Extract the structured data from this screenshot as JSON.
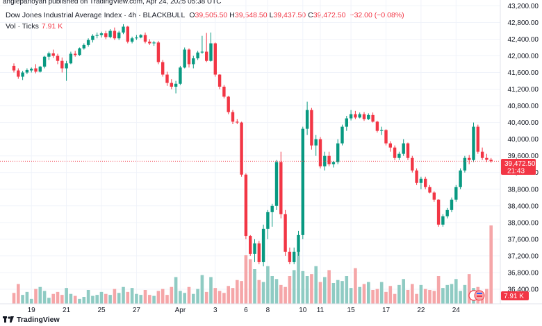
{
  "publisher_line": "anglepanoyan published on TradingView.com, Apr 24, 2025 05:38 UTC",
  "legend": {
    "title": "Dow Jones Industrial Average Index · 4h · BLACKBULL",
    "open_label": "O",
    "open": "39,505.50",
    "high_label": "H",
    "high": "39,548.50",
    "low_label": "L",
    "low": "39,437.50",
    "close_label": "C",
    "close": "39,472.50",
    "change": "−32.00 (−0.08%)",
    "volume_label": "Vol · Ticks",
    "volume_value": "7.91 K"
  },
  "price_badge": {
    "price": "39,472.50",
    "countdown": "21:43"
  },
  "volume_badge": "7.91 K",
  "footer_brand": "TradingView",
  "colors": {
    "up": "#089981",
    "down": "#f23645",
    "vol_up": "#8fcbc3",
    "vol_down": "#f5a6a8",
    "badge": "#f23645",
    "grid": "#f0f3fa",
    "text": "#131722"
  },
  "chart_data": {
    "type": "candlestick",
    "symbol": "Dow Jones Industrial Average Index",
    "interval": "4h",
    "exchange": "BLACKBULL",
    "y_ticks": [
      36400,
      36800,
      37200,
      37600,
      38000,
      38400,
      38800,
      39200,
      39600,
      40000,
      40400,
      40800,
      41200,
      41600,
      42000,
      42400,
      42800,
      43200
    ],
    "y_tick_labels": [
      "36,400.00",
      "36,800.00",
      "37,200.00",
      "37,600.00",
      "38,000.00",
      "38,400.00",
      "38,800.00",
      "39,200.00",
      "39,600.00",
      "40,000.00",
      "40,400.00",
      "40,800.00",
      "41,200.00",
      "41,600.00",
      "42,000.00",
      "42,400.00",
      "42,800.00",
      "43,200.00"
    ],
    "ylim": [
      36050,
      43340
    ],
    "x_labels": [
      {
        "label": "19",
        "bar": 4
      },
      {
        "label": "21",
        "bar": 12
      },
      {
        "label": "25",
        "bar": 20
      },
      {
        "label": "27",
        "bar": 28
      },
      {
        "label": "Apr",
        "bar": 38
      },
      {
        "label": "3",
        "bar": 46
      },
      {
        "label": "6",
        "bar": 53
      },
      {
        "label": "8",
        "bar": 58
      },
      {
        "label": "10",
        "bar": 66
      },
      {
        "label": "11",
        "bar": 70
      },
      {
        "label": "15",
        "bar": 77
      },
      {
        "label": "17",
        "bar": 85
      },
      {
        "label": "22",
        "bar": 93
      },
      {
        "label": "24",
        "bar": 101
      }
    ],
    "last_price": 39472.5,
    "ohlcv": [
      [
        41760,
        41820,
        41600,
        41650,
        1100
      ],
      [
        41650,
        41700,
        41450,
        41500,
        2000
      ],
      [
        41500,
        41640,
        41420,
        41600,
        900
      ],
      [
        41600,
        41700,
        41560,
        41660,
        1200
      ],
      [
        41650,
        41720,
        41600,
        41690,
        500
      ],
      [
        41700,
        41800,
        41580,
        41620,
        1500
      ],
      [
        41620,
        41760,
        41600,
        41740,
        1700
      ],
      [
        41740,
        42000,
        41700,
        41980,
        1300
      ],
      [
        41980,
        42100,
        41900,
        42060,
        600
      ],
      [
        42060,
        42150,
        41950,
        42000,
        1000
      ],
      [
        42000,
        42050,
        41800,
        41880,
        1200
      ],
      [
        41880,
        41960,
        41600,
        41700,
        900
      ],
      [
        41700,
        41880,
        41400,
        41820,
        1600
      ],
      [
        41820,
        42100,
        41800,
        42050,
        1000
      ],
      [
        42050,
        42120,
        41980,
        42020,
        800
      ],
      [
        42020,
        42200,
        42000,
        42180,
        500
      ],
      [
        42180,
        42300,
        42150,
        42260,
        700
      ],
      [
        42260,
        42420,
        42220,
        42380,
        1400
      ],
      [
        42380,
        42520,
        42320,
        42480,
        800
      ],
      [
        42480,
        42560,
        42420,
        42500,
        900
      ],
      [
        42500,
        42580,
        42440,
        42540,
        1200
      ],
      [
        42540,
        42600,
        42400,
        42450,
        1000
      ],
      [
        42450,
        42640,
        42420,
        42600,
        900
      ],
      [
        42600,
        42680,
        42380,
        42420,
        1500
      ],
      [
        42420,
        42600,
        42380,
        42560,
        1100
      ],
      [
        42560,
        42760,
        42520,
        42700,
        1700
      ],
      [
        42700,
        42720,
        42300,
        42340,
        1200
      ],
      [
        42340,
        42460,
        42300,
        42420,
        1600
      ],
      [
        42420,
        42500,
        42380,
        42440,
        1000
      ],
      [
        42440,
        42520,
        42420,
        42500,
        900
      ],
      [
        42500,
        42560,
        42300,
        42340,
        1400
      ],
      [
        42340,
        42400,
        42260,
        42300,
        900
      ],
      [
        42300,
        42360,
        42240,
        42320,
        800
      ],
      [
        42320,
        42360,
        41800,
        41850,
        1300
      ],
      [
        41850,
        41900,
        41500,
        41550,
        1500
      ],
      [
        41550,
        41620,
        41280,
        41350,
        900
      ],
      [
        41350,
        41440,
        41200,
        41260,
        1700
      ],
      [
        41260,
        41400,
        41100,
        41330,
        2700
      ],
      [
        41330,
        41760,
        41300,
        41720,
        1300
      ],
      [
        41720,
        42200,
        41700,
        42150,
        1100
      ],
      [
        42150,
        42180,
        41720,
        41800,
        1700
      ],
      [
        41800,
        42000,
        41700,
        41940,
        1000
      ],
      [
        41940,
        42120,
        41900,
        42080,
        1500
      ],
      [
        42080,
        42480,
        42050,
        42100,
        2900
      ],
      [
        42100,
        42550,
        41850,
        41880,
        1200
      ],
      [
        41880,
        42560,
        41860,
        42300,
        2700
      ],
      [
        42300,
        42320,
        41500,
        41550,
        1600
      ],
      [
        41550,
        41560,
        41200,
        41260,
        1300
      ],
      [
        41260,
        41300,
        40980,
        41020,
        1100
      ],
      [
        41020,
        41040,
        40600,
        40650,
        1800
      ],
      [
        40650,
        40700,
        40360,
        40420,
        1600
      ],
      [
        40420,
        40480,
        40360,
        40400,
        2400
      ],
      [
        40400,
        40420,
        39100,
        39150,
        2300
      ],
      [
        39150,
        39180,
        37600,
        37680,
        4900
      ],
      [
        37680,
        37700,
        37200,
        37250,
        4500
      ],
      [
        37250,
        37600,
        37050,
        37500,
        3500
      ],
      [
        37500,
        37560,
        37000,
        37050,
        2400
      ],
      [
        37050,
        37950,
        36950,
        37850,
        2200
      ],
      [
        37850,
        38300,
        37600,
        38250,
        3800
      ],
      [
        38250,
        38450,
        37900,
        38400,
        2800
      ],
      [
        38400,
        39500,
        38300,
        39450,
        2500
      ],
      [
        39450,
        39700,
        38100,
        38200,
        1900
      ],
      [
        38200,
        38300,
        37200,
        37300,
        1700
      ],
      [
        37300,
        37400,
        37000,
        37050,
        2800
      ],
      [
        37050,
        37400,
        37000,
        37300,
        3400
      ],
      [
        37300,
        37800,
        37200,
        37700,
        5400
      ],
      [
        37700,
        40300,
        37600,
        40250,
        3300
      ],
      [
        40250,
        40900,
        40100,
        40700,
        2800
      ],
      [
        40700,
        40750,
        39750,
        39850,
        3000
      ],
      [
        39850,
        40100,
        39600,
        40000,
        3800
      ],
      [
        40000,
        40050,
        39300,
        39350,
        2200
      ],
      [
        39350,
        39700,
        39250,
        39600,
        2700
      ],
      [
        39600,
        39700,
        39350,
        39400,
        3400
      ],
      [
        39400,
        39480,
        39320,
        39450,
        2100
      ],
      [
        39450,
        40000,
        39400,
        39900,
        2400
      ],
      [
        39900,
        40350,
        39850,
        40300,
        2300
      ],
      [
        40300,
        40560,
        40200,
        40500,
        2800
      ],
      [
        40500,
        40700,
        40450,
        40600,
        1600
      ],
      [
        40600,
        40680,
        40480,
        40520,
        3600
      ],
      [
        40520,
        40640,
        40500,
        40600,
        1700
      ],
      [
        40600,
        40650,
        40440,
        40480,
        2000
      ],
      [
        40480,
        40620,
        40460,
        40580,
        2200
      ],
      [
        40580,
        40640,
        40400,
        40420,
        1400
      ],
      [
        40420,
        40440,
        40160,
        40200,
        1500
      ],
      [
        40200,
        40300,
        40100,
        40220,
        2200
      ],
      [
        40220,
        40240,
        39850,
        39900,
        1200
      ],
      [
        39900,
        39950,
        39700,
        39800,
        1800
      ],
      [
        39800,
        39850,
        39500,
        39550,
        1000
      ],
      [
        39550,
        39700,
        39500,
        39650,
        1900
      ],
      [
        39650,
        40000,
        39600,
        39900,
        2500
      ],
      [
        39900,
        39920,
        39500,
        39550,
        1400
      ],
      [
        39550,
        39600,
        39200,
        39250,
        2000
      ],
      [
        39250,
        39300,
        38900,
        38950,
        1000
      ],
      [
        38950,
        39100,
        38800,
        39050,
        1900
      ],
      [
        39050,
        39100,
        38800,
        38850,
        1500
      ],
      [
        38850,
        38900,
        38700,
        38720,
        1400
      ],
      [
        38720,
        38750,
        38500,
        38550,
        1300
      ],
      [
        38550,
        38560,
        37900,
        37950,
        2800
      ],
      [
        37950,
        38200,
        37900,
        38150,
        1600
      ],
      [
        38150,
        38350,
        38100,
        38300,
        1900
      ],
      [
        38300,
        38600,
        38250,
        38550,
        2000
      ],
      [
        38550,
        38900,
        38500,
        38850,
        2500
      ],
      [
        38850,
        39300,
        38800,
        39250,
        1300
      ],
      [
        39250,
        39600,
        39200,
        39550,
        1900
      ],
      [
        39550,
        39620,
        39400,
        39500,
        3000
      ],
      [
        39500,
        40400,
        39450,
        40300,
        1600
      ],
      [
        40300,
        40350,
        39650,
        39700,
        1700
      ],
      [
        39700,
        39800,
        39500,
        39550,
        1100
      ],
      [
        39550,
        39650,
        39450,
        39505.5,
        1500
      ],
      [
        39505.5,
        39548.5,
        39437.5,
        39472.5,
        7910
      ]
    ]
  }
}
